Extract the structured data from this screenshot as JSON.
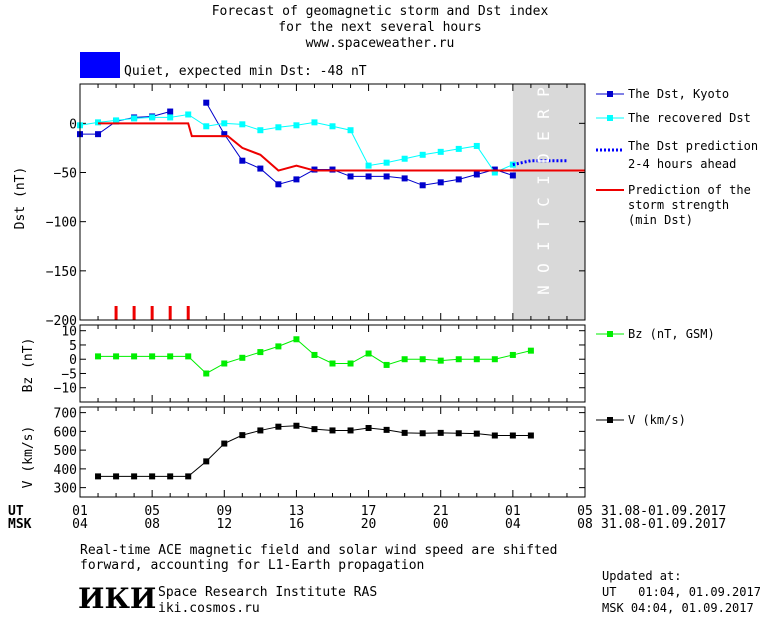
{
  "header": {
    "title_line1": "Forecast of geomagnetic storm and Dst index",
    "title_line2": "for the next several hours",
    "site": "www.spaceweather.ru",
    "status": "Quiet, expected min Dst: -48 nT",
    "status_color": "#0000ff"
  },
  "axes": {
    "dst_label": "Dst (nT)",
    "bz_label": "Bz (nT)",
    "v_label": "V (km/s)",
    "ut_label": "UT",
    "msk_label": "MSK",
    "ut_ticks": [
      "01",
      "05",
      "09",
      "13",
      "17",
      "21",
      "01",
      "05"
    ],
    "msk_ticks": [
      "04",
      "08",
      "12",
      "16",
      "20",
      "00",
      "04",
      "08"
    ],
    "date_range": "31.08-01.09.2017",
    "prediction_text": "PREDICTION"
  },
  "legend": {
    "dst_kyoto": "The Dst, Kyoto",
    "dst_recovered": "The recovered Dst",
    "dst_prediction_1": "The Dst prediction",
    "dst_prediction_2": "2-4 hours ahead",
    "storm_1": "Prediction of the",
    "storm_2": "storm strength",
    "storm_3": "(min Dst)",
    "bz": "Bz (nT, GSM)",
    "v": "V (km/s)"
  },
  "footer": {
    "note_line1": "Real-time ACE magnetic field and solar wind speed are shifted",
    "note_line2": "forward, accounting for L1-Earth propagation",
    "logo": "ИКИ",
    "institute": "Space Research Institute RAS",
    "institute_url": "iki.cosmos.ru",
    "updated_label": "Updated at:",
    "updated_ut": "UT   01:04, 01.09.2017",
    "updated_msk": "MSK 04:04, 01.09.2017"
  },
  "colors": {
    "kyoto": "#0000cc",
    "recovered": "#00ffff",
    "prediction": "#0000ff",
    "storm": "#ee0000",
    "bz": "#00ee00",
    "v": "#000000",
    "prediction_zone": "#d9d9d9"
  },
  "chart_data": [
    {
      "type": "line",
      "title": "Dst",
      "ylabel": "Dst (nT)",
      "x_unit": "hours from 31.08 00:00 UT",
      "xlim": [
        1,
        29
      ],
      "ylim": [
        -200,
        40
      ],
      "yticks": [
        0,
        -50,
        -100,
        -150,
        -200
      ],
      "prediction_zone_start": 25,
      "series": [
        {
          "name": "The Dst, Kyoto",
          "x": [
            1,
            2,
            3,
            4,
            5,
            6,
            7,
            8,
            9,
            10,
            11,
            12,
            13,
            14,
            15,
            16,
            17,
            18,
            19,
            20,
            21,
            22,
            23,
            24,
            25
          ],
          "y": [
            -11,
            -11,
            2,
            6,
            7,
            12,
            null,
            21,
            -11,
            -38,
            -46,
            -62,
            -57,
            -47,
            -47,
            -54,
            -54,
            -54,
            -56,
            -63,
            -60,
            -57,
            -52,
            -47,
            -53
          ]
        },
        {
          "name": "The recovered Dst",
          "x": [
            1,
            2,
            3,
            4,
            5,
            6,
            7,
            8,
            9,
            10,
            11,
            12,
            13,
            14,
            15,
            16,
            17,
            18,
            19,
            20,
            21,
            22,
            23,
            24,
            25
          ],
          "y": [
            -2,
            1,
            3,
            5,
            6,
            6,
            9,
            -3,
            0,
            -1,
            -7,
            -4,
            -2,
            1,
            -3,
            -7,
            -43,
            -40,
            -36,
            -32,
            -29,
            -26,
            -23,
            -50,
            -42
          ]
        },
        {
          "name": "The Dst prediction 2-4 hours ahead",
          "x": [
            25,
            25.5,
            26,
            27,
            28
          ],
          "y": [
            -42,
            -40,
            -38,
            -38,
            -38
          ]
        },
        {
          "name": "Prediction of the storm strength (min Dst)",
          "x": [
            2,
            2.5,
            7,
            7.2,
            9.2,
            10,
            11,
            12,
            13,
            14,
            15,
            29
          ],
          "y": [
            0,
            0,
            0,
            -13,
            -13,
            -25,
            -32,
            -48,
            -43,
            -48,
            -48,
            -48
          ]
        }
      ],
      "storm_markers_x": [
        3,
        4,
        5,
        6,
        7
      ]
    },
    {
      "type": "line",
      "ylabel": "Bz (nT)",
      "xlim": [
        1,
        29
      ],
      "ylim": [
        -15,
        12
      ],
      "yticks": [
        10,
        5,
        0,
        -5,
        -10
      ],
      "series": [
        {
          "name": "Bz (nT, GSM)",
          "x": [
            2,
            3,
            4,
            5,
            6,
            7,
            8,
            9,
            10,
            11,
            12,
            13,
            14,
            15,
            16,
            17,
            18,
            19,
            20,
            21,
            22,
            23,
            24,
            25,
            26
          ],
          "y": [
            1,
            1,
            1,
            1,
            1,
            1,
            -5,
            -1.5,
            0.5,
            2.5,
            4.5,
            7,
            1.5,
            -1.5,
            -1.5,
            2,
            -2,
            0,
            0,
            -0.5,
            0,
            0,
            0,
            1.5,
            3
          ]
        }
      ]
    },
    {
      "type": "line",
      "ylabel": "V (km/s)",
      "xlim": [
        1,
        29
      ],
      "ylim": [
        250,
        730
      ],
      "yticks": [
        700,
        600,
        500,
        400,
        300
      ],
      "series": [
        {
          "name": "V (km/s)",
          "x": [
            2,
            3,
            4,
            5,
            6,
            7,
            8,
            9,
            10,
            11,
            12,
            13,
            14,
            15,
            16,
            17,
            18,
            19,
            20,
            21,
            22,
            23,
            24,
            25,
            26
          ],
          "y": [
            360,
            360,
            360,
            360,
            360,
            360,
            440,
            535,
            580,
            605,
            625,
            630,
            612,
            605,
            605,
            618,
            608,
            592,
            590,
            592,
            590,
            588,
            578,
            578,
            578
          ]
        }
      ]
    }
  ]
}
